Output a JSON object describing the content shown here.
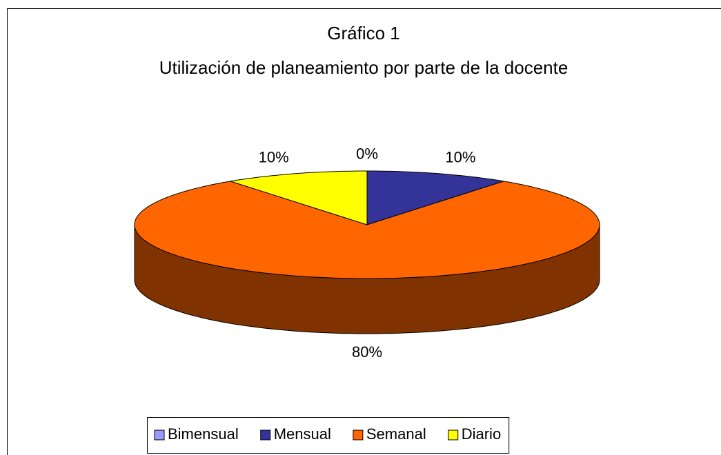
{
  "chart_data": {
    "type": "pie3d",
    "title": "Gráfico 1",
    "subtitle": "Utilización de planeamiento por parte de la docente",
    "categories": [
      "Bimensual",
      "Mensual",
      "Semanal",
      "Diario"
    ],
    "values": [
      0,
      10,
      80,
      10
    ],
    "value_labels": [
      "0%",
      "10%",
      "80%",
      "10%"
    ],
    "colors": [
      "#9999ff",
      "#333399",
      "#ff6600",
      "#ffff00"
    ],
    "legend": "bottom"
  }
}
